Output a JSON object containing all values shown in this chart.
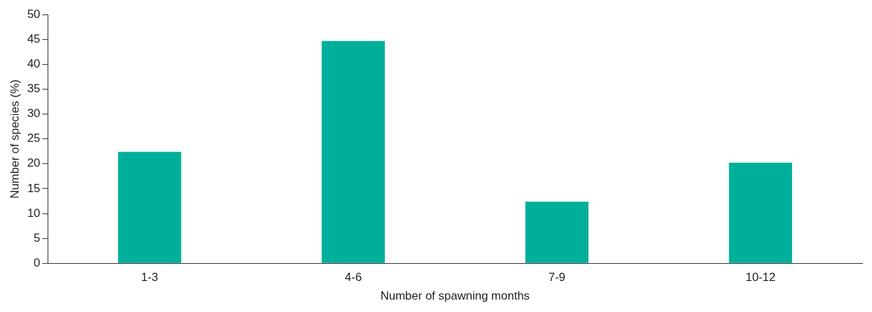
{
  "chart_data": {
    "type": "bar",
    "xlabel": "Number of spawning months",
    "ylabel": "Number of species (%)",
    "categories": [
      "1-3",
      "4-6",
      "7-9",
      "10-12"
    ],
    "values": [
      22.4,
      44.7,
      12.4,
      20.2
    ],
    "color": "#00af9a",
    "ylim": [
      0,
      50
    ],
    "yticks": [
      0,
      5,
      10,
      15,
      20,
      25,
      30,
      35,
      40,
      45,
      50
    ],
    "grid": false,
    "legend": false
  }
}
